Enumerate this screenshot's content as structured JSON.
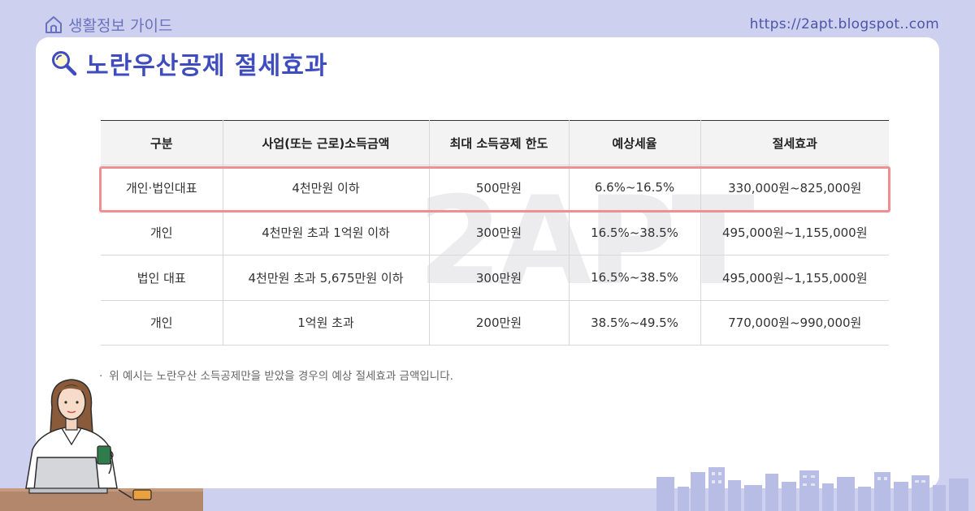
{
  "header": {
    "brand": "생활정보 가이드",
    "url": "https://2apt.blogspot..com"
  },
  "title": "노란우산공제 절세효과",
  "watermark": "2APT",
  "table": {
    "columns": [
      "구분",
      "사업(또는 근로)소득금액",
      "최대 소득공제 한도",
      "예상세율",
      "절세효과"
    ],
    "rows": [
      [
        "개인·법인대표",
        "4천만원 이하",
        "500만원",
        "6.6%~16.5%",
        "330,000원~825,000원"
      ],
      [
        "개인",
        "4천만원 초과 1억원 이하",
        "300만원",
        "16.5%~38.5%",
        "495,000원~1,155,000원"
      ],
      [
        "법인 대표",
        "4천만원 초과 5,675만원 이하",
        "300만원",
        "16.5%~38.5%",
        "495,000원~1,155,000원"
      ],
      [
        "개인",
        "1억원 초과",
        "200만원",
        "38.5%~49.5%",
        "770,000원~990,000원"
      ]
    ],
    "highlighted_row": 0
  },
  "footnote": "위 예시는 노란우산 소득공제만을 받았을 경우의 예상 절세효과 금액입니다.",
  "footnote_bullet": "·",
  "colors": {
    "background": "#cdd0ee",
    "title": "#3e4cc0",
    "highlight_border": "#ef8f92",
    "brand": "#6a72c0"
  },
  "icons": {
    "brand": "house-outline-icon",
    "title": "magnifier-icon"
  }
}
